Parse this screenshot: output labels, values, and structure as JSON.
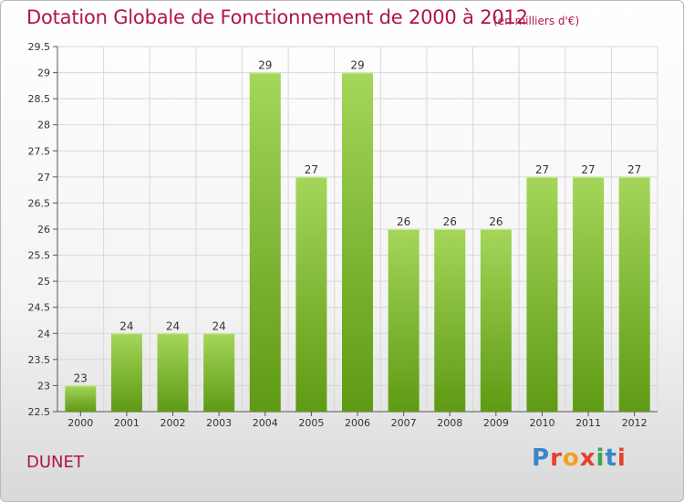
{
  "title": "Dotation Globale de Fonctionnement de 2000 à 2012",
  "unit_note": "(en milliers d'€)",
  "commune": "DUNET",
  "logo": {
    "letters": [
      "P",
      "r",
      "o",
      "x",
      "i",
      "t",
      "i"
    ],
    "colors": [
      "#3a86c8",
      "#e8402a",
      "#f0a020",
      "#e8402a",
      "#3aa84a",
      "#3a86c8",
      "#e8402a"
    ]
  },
  "colors": {
    "bar_light": "#a4d65a",
    "bar_dark": "#5e9a14",
    "title": "#b0144d"
  },
  "chart_data": {
    "type": "bar",
    "categories": [
      "2000",
      "2001",
      "2002",
      "2003",
      "2004",
      "2005",
      "2006",
      "2007",
      "2008",
      "2009",
      "2010",
      "2011",
      "2012"
    ],
    "values": [
      23,
      24,
      24,
      24,
      29,
      27,
      29,
      26,
      26,
      26,
      27,
      27,
      27
    ],
    "data_labels": [
      "23",
      "24",
      "24",
      "24",
      "29",
      "27",
      "29",
      "26",
      "26",
      "26",
      "27",
      "27",
      "27"
    ],
    "ylim": [
      22.5,
      29.5
    ],
    "yticks": [
      "22.5",
      "23",
      "23.5",
      "24",
      "24.5",
      "25",
      "25.5",
      "26",
      "26.5",
      "27",
      "27.5",
      "28",
      "28.5",
      "29",
      "29.5"
    ],
    "grid": true,
    "xlabel": "",
    "ylabel": ""
  }
}
